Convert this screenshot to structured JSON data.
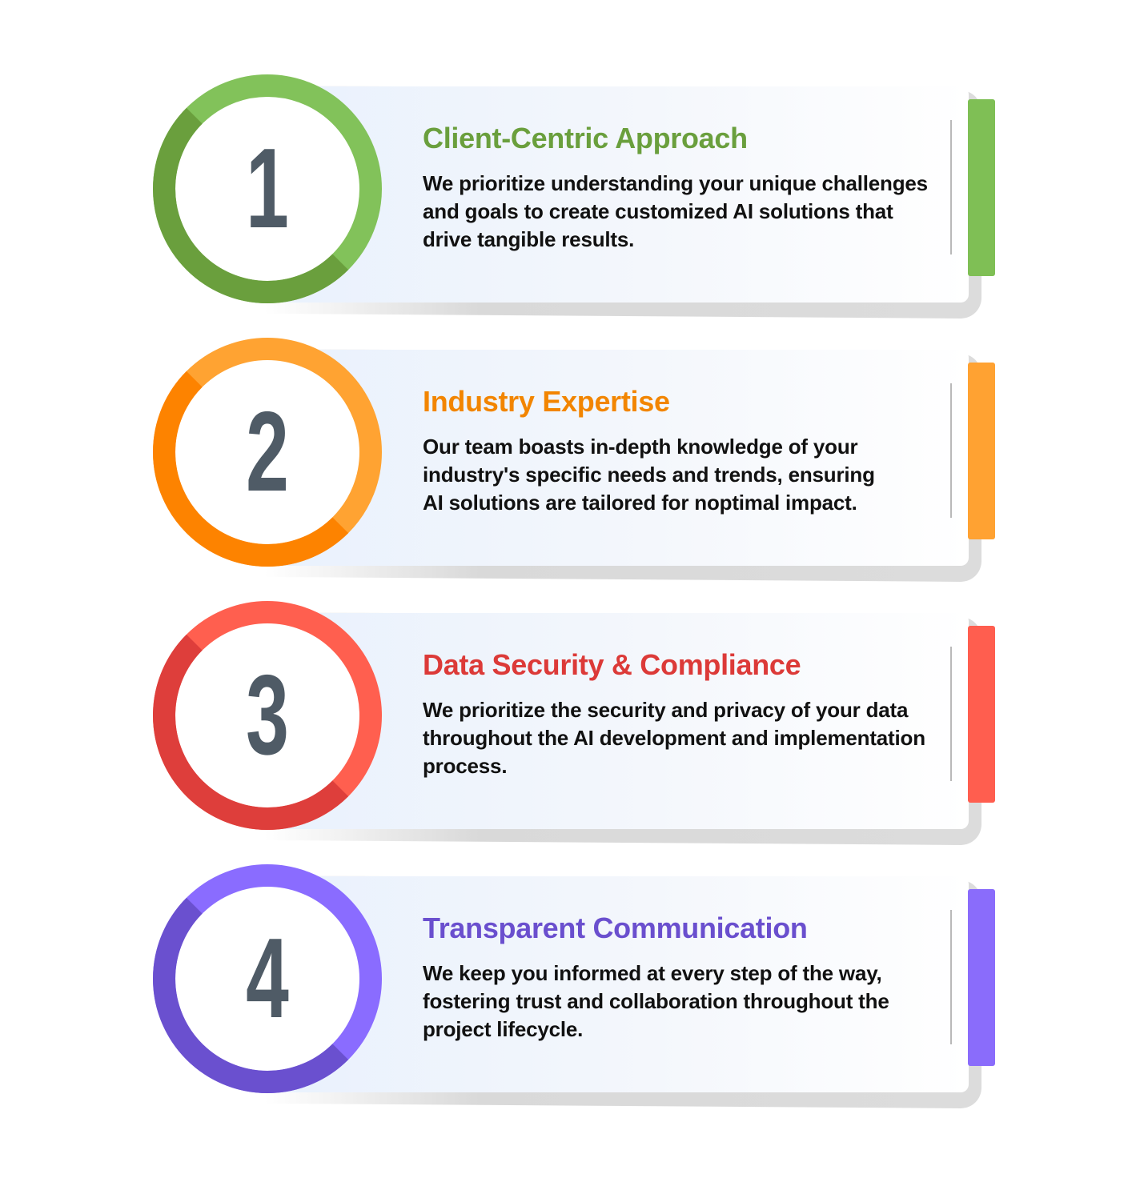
{
  "steps": [
    {
      "number": "1",
      "title": "Client-Centric Approach",
      "lines": [
        "We prioritize understanding your unique challenges",
        "and goals to create customized AI solutions that",
        "drive tangible results."
      ],
      "colors": {
        "title": "#6a9f3d",
        "light": "#82c25a",
        "dark": "#6a9f3d",
        "bar": "#7fbf55"
      }
    },
    {
      "number": "2",
      "title": "Industry Expertise",
      "lines": [
        "Our team boasts in-depth knowledge of your",
        "industry's specific needs and trends, ensuring",
        "AI solutions are tailored for noptimal impact."
      ],
      "colors": {
        "title": "#f28500",
        "light": "#ffa332",
        "dark": "#fd8300",
        "bar": "#ffa232"
      }
    },
    {
      "number": "3",
      "title": "Data Security & Compliance",
      "lines": [
        "We prioritize the security and privacy of your data",
        "throughout the AI development and implementation",
        "process."
      ],
      "colors": {
        "title": "#dc3a38",
        "light": "#ff5f4f",
        "dark": "#de3e3b",
        "bar": "#ff5e4f"
      }
    },
    {
      "number": "4",
      "title": "Transparent Communication",
      "lines": [
        "We keep you informed at every step of the way,",
        "fostering trust and collaboration throughout the",
        "project lifecycle."
      ],
      "colors": {
        "title": "#6a4fce",
        "light": "#8a6cff",
        "dark": "#6a50cf",
        "bar": "#8a6cfb"
      }
    }
  ]
}
